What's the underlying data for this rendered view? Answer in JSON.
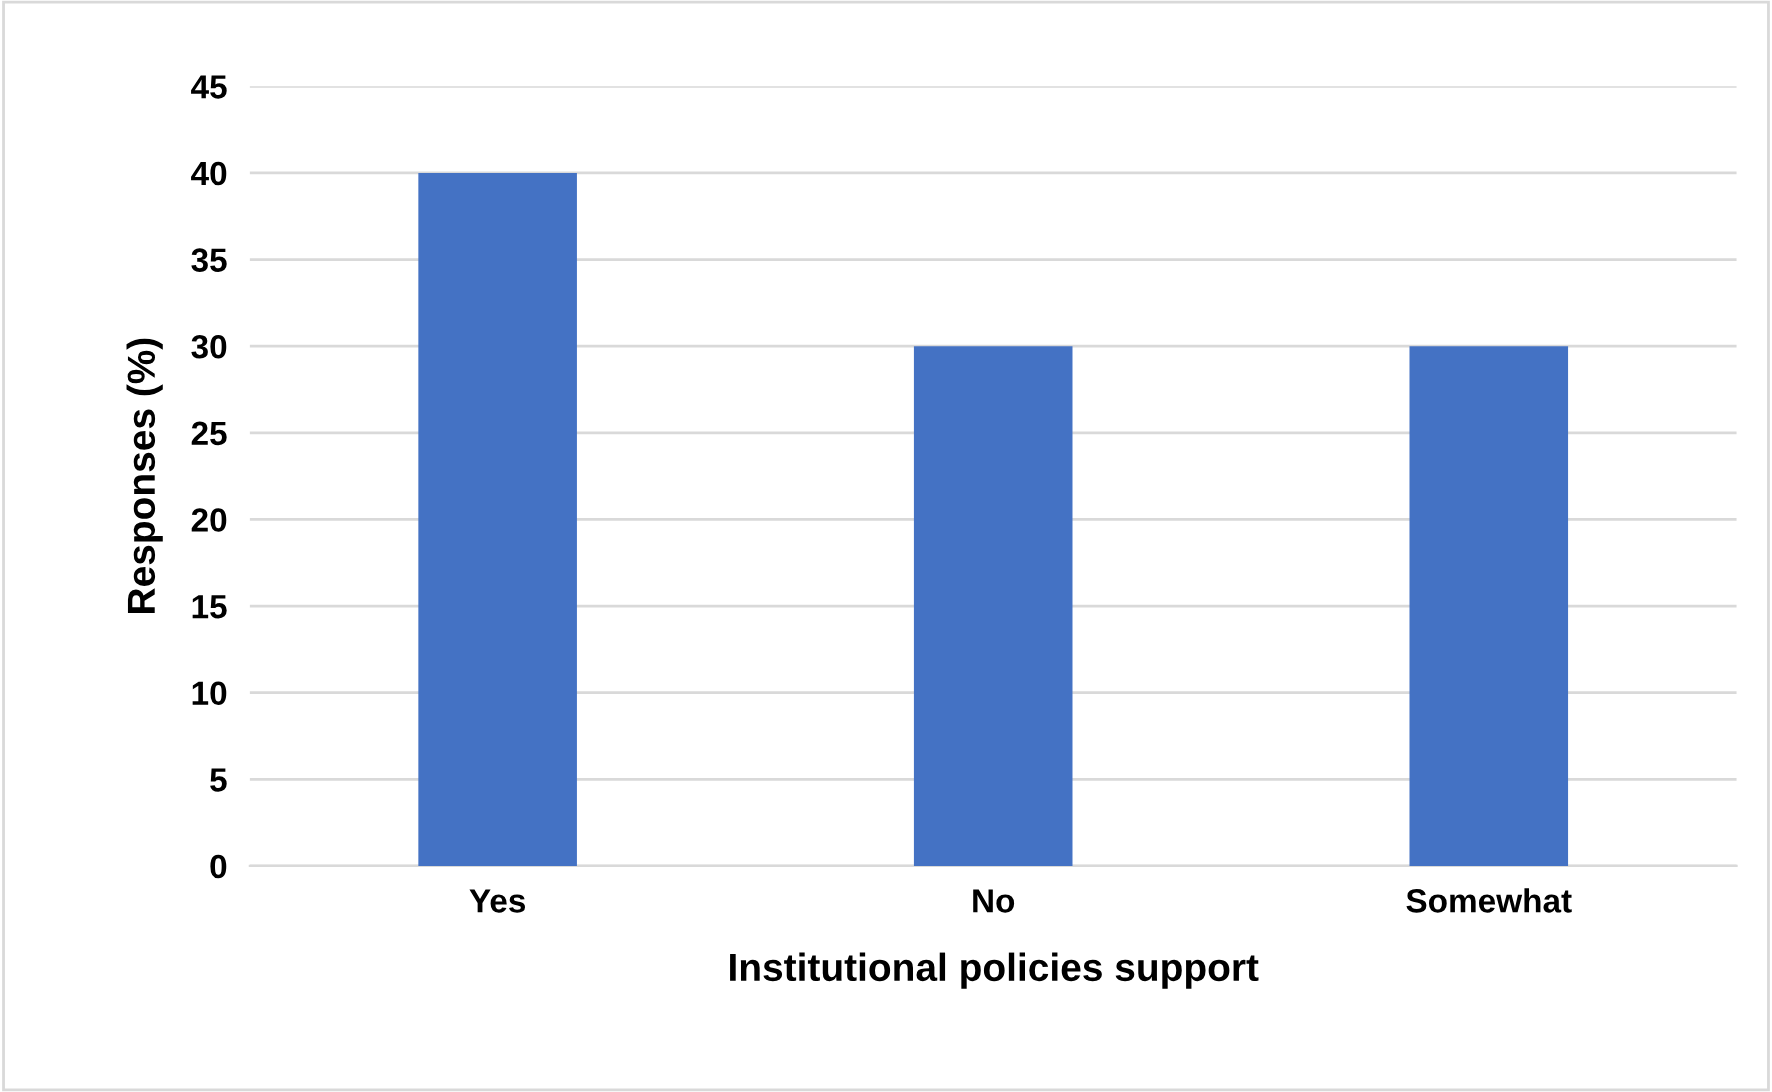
{
  "chart_data": {
    "type": "bar",
    "xlabel": "Institutional policies support",
    "ylabel": "Responses (%)",
    "categories": [
      "Yes",
      "No",
      "Somewhat"
    ],
    "values": [
      40,
      30,
      30
    ],
    "color": "#4472c4",
    "ylim": [
      0,
      45
    ],
    "yticks": [
      0,
      5,
      10,
      15,
      20,
      25,
      30,
      35,
      40,
      45
    ],
    "grid": "y"
  }
}
